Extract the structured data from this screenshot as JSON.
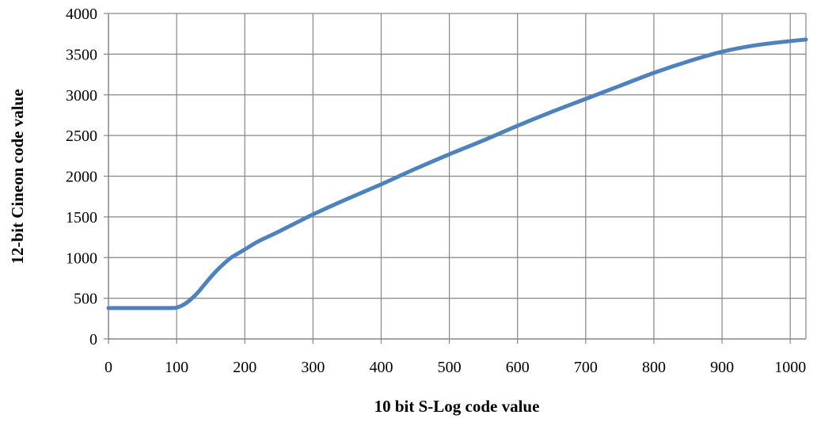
{
  "chart_data": {
    "type": "line",
    "title": "",
    "xlabel": "10 bit S-Log  code value",
    "ylabel": "12-bit Cineon code value",
    "xlim": [
      0,
      1023
    ],
    "ylim": [
      0,
      4000
    ],
    "x_ticks": [
      0,
      100,
      200,
      300,
      400,
      500,
      600,
      700,
      800,
      900,
      1000
    ],
    "x_tick_labels": [
      "0",
      "100",
      "200",
      "300",
      "400",
      "500",
      "600",
      "700",
      "800",
      "900",
      "1000"
    ],
    "y_ticks": [
      0,
      500,
      1000,
      1500,
      2000,
      2500,
      3000,
      3500,
      4000
    ],
    "y_tick_labels": [
      "0",
      "500",
      "1000",
      "1500",
      "2000",
      "2500",
      "3000",
      "3500",
      "4000"
    ],
    "grid": true,
    "legend": "none",
    "series": [
      {
        "color": "#4f81bd",
        "x": [
          0,
          50,
          90,
          100,
          110,
          120,
          130,
          140,
          150,
          160,
          170,
          180,
          190,
          200,
          220,
          250,
          300,
          350,
          400,
          450,
          500,
          550,
          600,
          650,
          700,
          750,
          800,
          850,
          900,
          950,
          1000,
          1023
        ],
        "y": [
          380,
          380,
          380,
          385,
          420,
          480,
          560,
          660,
          760,
          850,
          930,
          1000,
          1050,
          1100,
          1200,
          1320,
          1530,
          1720,
          1900,
          2090,
          2270,
          2440,
          2620,
          2790,
          2950,
          3110,
          3270,
          3410,
          3530,
          3610,
          3660,
          3680
        ]
      }
    ]
  }
}
